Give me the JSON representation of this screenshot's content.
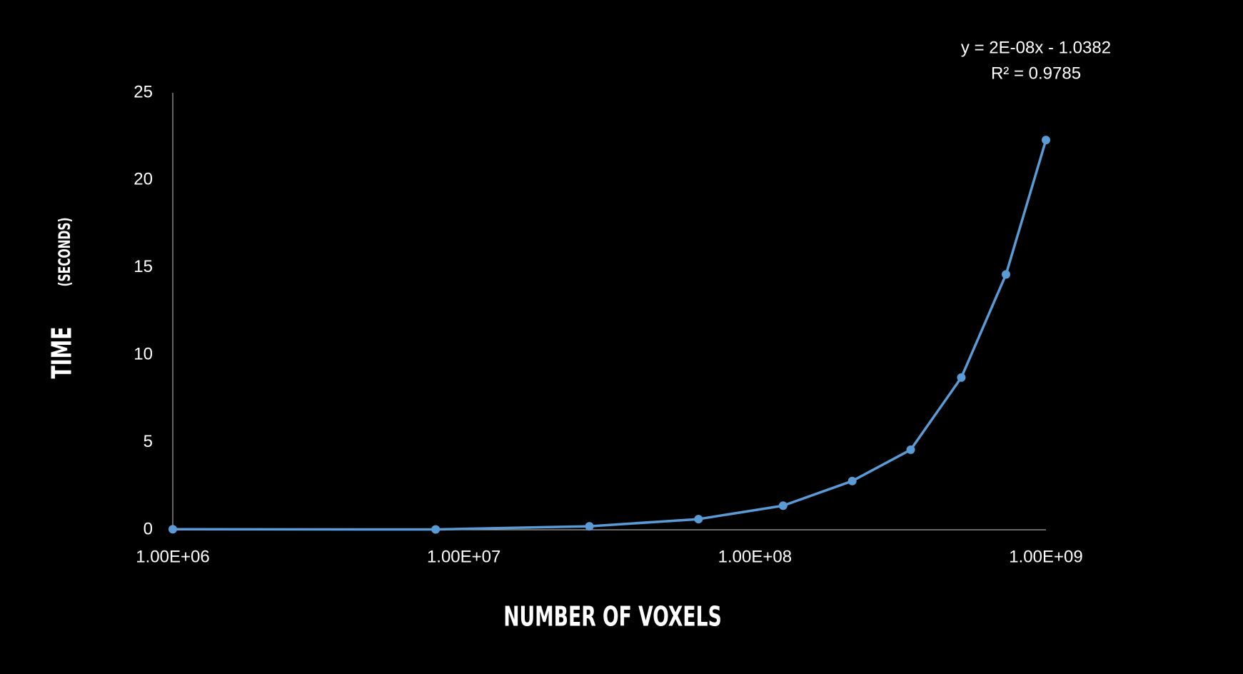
{
  "chart_data": {
    "type": "line",
    "xlabel": "NUMBER OF VOXELS",
    "ylabel": "TIME",
    "ylabel_unit": "(SECONDS)",
    "annotations": [
      "y = 2E-08x - 1.0382",
      "R² = 0.9785"
    ],
    "xscale": "log",
    "xlim": [
      1000000,
      1000000000
    ],
    "xticks": [
      {
        "value": 1000000,
        "label": "1.00E+06"
      },
      {
        "value": 10000000,
        "label": "1.00E+07"
      },
      {
        "value": 100000000,
        "label": "1.00E+08"
      },
      {
        "value": 1000000000,
        "label": "1.00E+09"
      }
    ],
    "ylim": [
      0,
      25
    ],
    "yticks": [
      0,
      5,
      10,
      15,
      20,
      25
    ],
    "grid": false,
    "x": [
      1000000,
      8000000,
      27000000,
      64000000,
      125000000,
      216000000,
      343000000,
      512000000,
      729000000,
      1000000000
    ],
    "series": [
      {
        "color": "#5b9bd5",
        "values": [
          0.03,
          0.02,
          0.2,
          0.61,
          1.38,
          2.79,
          4.58,
          8.71,
          14.61,
          22.3
        ]
      }
    ]
  }
}
